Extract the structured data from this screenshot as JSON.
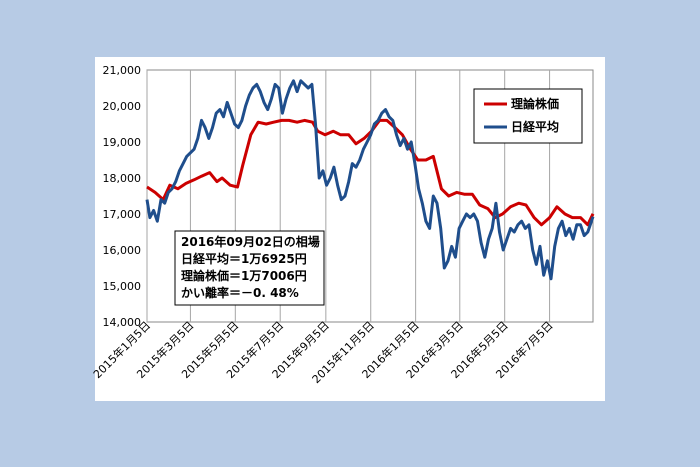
{
  "chart_data": {
    "type": "line",
    "x_tick_labels": [
      "2015年1月5日",
      "2015年3月5日",
      "2015年5月5日",
      "2015年7月5日",
      "2015年9月5日",
      "2015年11月5日",
      "2016年1月5日",
      "2016年3月5日",
      "2016年5月5日",
      "2016年7月5日"
    ],
    "y_tick_labels": [
      "14,000",
      "15,000",
      "16,000",
      "17,000",
      "18,000",
      "19,000",
      "20,000",
      "21,000"
    ],
    "ylim": [
      14000,
      21000
    ],
    "xlim": [
      "2015-01-05",
      "2016-09-02"
    ],
    "grid": "vertical",
    "legend_position": "top-right",
    "series": [
      {
        "name": "理論株価",
        "color": "#cc0000",
        "points": [
          [
            "2015-01-05",
            17750
          ],
          [
            "2015-01-16",
            17600
          ],
          [
            "2015-01-27",
            17400
          ],
          [
            "2015-02-05",
            17800
          ],
          [
            "2015-02-16",
            17700
          ],
          [
            "2015-02-27",
            17850
          ],
          [
            "2015-03-10",
            17950
          ],
          [
            "2015-03-20",
            18050
          ],
          [
            "2015-03-31",
            18150
          ],
          [
            "2015-04-10",
            17900
          ],
          [
            "2015-04-17",
            18000
          ],
          [
            "2015-04-28",
            17800
          ],
          [
            "2015-05-08",
            17750
          ],
          [
            "2015-05-15",
            18350
          ],
          [
            "2015-05-26",
            19200
          ],
          [
            "2015-06-05",
            19550
          ],
          [
            "2015-06-16",
            19500
          ],
          [
            "2015-06-26",
            19550
          ],
          [
            "2015-07-07",
            19600
          ],
          [
            "2015-07-17",
            19600
          ],
          [
            "2015-07-28",
            19550
          ],
          [
            "2015-08-07",
            19600
          ],
          [
            "2015-08-18",
            19550
          ],
          [
            "2015-08-25",
            19300
          ],
          [
            "2015-09-04",
            19200
          ],
          [
            "2015-09-15",
            19300
          ],
          [
            "2015-09-25",
            19200
          ],
          [
            "2015-10-06",
            19200
          ],
          [
            "2015-10-16",
            18950
          ],
          [
            "2015-10-27",
            19100
          ],
          [
            "2015-11-06",
            19300
          ],
          [
            "2015-11-17",
            19600
          ],
          [
            "2015-11-27",
            19600
          ],
          [
            "2015-12-08",
            19400
          ],
          [
            "2015-12-18",
            19200
          ],
          [
            "2015-12-29",
            18800
          ],
          [
            "2016-01-08",
            18500
          ],
          [
            "2016-01-19",
            18500
          ],
          [
            "2016-01-29",
            18600
          ],
          [
            "2016-02-09",
            17700
          ],
          [
            "2016-02-19",
            17500
          ],
          [
            "2016-03-01",
            17600
          ],
          [
            "2016-03-11",
            17550
          ],
          [
            "2016-03-22",
            17550
          ],
          [
            "2016-04-01",
            17250
          ],
          [
            "2016-04-12",
            17150
          ],
          [
            "2016-04-22",
            16900
          ],
          [
            "2016-05-02",
            17000
          ],
          [
            "2016-05-13",
            17200
          ],
          [
            "2016-05-24",
            17300
          ],
          [
            "2016-06-03",
            17250
          ],
          [
            "2016-06-14",
            16900
          ],
          [
            "2016-06-24",
            16700
          ],
          [
            "2016-07-05",
            16900
          ],
          [
            "2016-07-15",
            17200
          ],
          [
            "2016-07-26",
            17000
          ],
          [
            "2016-08-05",
            16900
          ],
          [
            "2016-08-16",
            16900
          ],
          [
            "2016-08-26",
            16700
          ],
          [
            "2016-09-02",
            17006
          ]
        ]
      },
      {
        "name": "日経平均",
        "color": "#1f4e8c",
        "points": [
          [
            "2015-01-05",
            17400
          ],
          [
            "2015-01-09",
            16900
          ],
          [
            "2015-01-14",
            17100
          ],
          [
            "2015-01-19",
            16800
          ],
          [
            "2015-01-24",
            17400
          ],
          [
            "2015-01-29",
            17300
          ],
          [
            "2015-02-03",
            17600
          ],
          [
            "2015-02-08",
            17700
          ],
          [
            "2015-02-13",
            17900
          ],
          [
            "2015-02-18",
            18200
          ],
          [
            "2015-02-23",
            18400
          ],
          [
            "2015-02-28",
            18600
          ],
          [
            "2015-03-05",
            18700
          ],
          [
            "2015-03-10",
            18800
          ],
          [
            "2015-03-15",
            19100
          ],
          [
            "2015-03-20",
            19600
          ],
          [
            "2015-03-25",
            19400
          ],
          [
            "2015-03-30",
            19100
          ],
          [
            "2015-04-04",
            19400
          ],
          [
            "2015-04-09",
            19800
          ],
          [
            "2015-04-14",
            19900
          ],
          [
            "2015-04-19",
            19700
          ],
          [
            "2015-04-24",
            20100
          ],
          [
            "2015-04-29",
            19800
          ],
          [
            "2015-05-04",
            19500
          ],
          [
            "2015-05-09",
            19400
          ],
          [
            "2015-05-14",
            19600
          ],
          [
            "2015-05-19",
            20000
          ],
          [
            "2015-05-24",
            20300
          ],
          [
            "2015-05-29",
            20500
          ],
          [
            "2015-06-03",
            20600
          ],
          [
            "2015-06-08",
            20400
          ],
          [
            "2015-06-13",
            20100
          ],
          [
            "2015-06-18",
            19900
          ],
          [
            "2015-06-23",
            20200
          ],
          [
            "2015-06-28",
            20600
          ],
          [
            "2015-07-03",
            20500
          ],
          [
            "2015-07-08",
            19800
          ],
          [
            "2015-07-13",
            20200
          ],
          [
            "2015-07-18",
            20500
          ],
          [
            "2015-07-23",
            20700
          ],
          [
            "2015-07-28",
            20400
          ],
          [
            "2015-08-02",
            20700
          ],
          [
            "2015-08-07",
            20600
          ],
          [
            "2015-08-12",
            20500
          ],
          [
            "2015-08-17",
            20600
          ],
          [
            "2015-08-22",
            19500
          ],
          [
            "2015-08-27",
            18000
          ],
          [
            "2015-09-01",
            18200
          ],
          [
            "2015-09-06",
            17800
          ],
          [
            "2015-09-11",
            18000
          ],
          [
            "2015-09-16",
            18300
          ],
          [
            "2015-09-21",
            17800
          ],
          [
            "2015-09-26",
            17400
          ],
          [
            "2015-10-01",
            17500
          ],
          [
            "2015-10-06",
            17900
          ],
          [
            "2015-10-11",
            18400
          ],
          [
            "2015-10-16",
            18300
          ],
          [
            "2015-10-21",
            18500
          ],
          [
            "2015-10-26",
            18800
          ],
          [
            "2015-10-31",
            19000
          ],
          [
            "2015-11-05",
            19200
          ],
          [
            "2015-11-10",
            19500
          ],
          [
            "2015-11-15",
            19600
          ],
          [
            "2015-11-20",
            19800
          ],
          [
            "2015-11-25",
            19900
          ],
          [
            "2015-11-30",
            19700
          ],
          [
            "2015-12-05",
            19600
          ],
          [
            "2015-12-10",
            19200
          ],
          [
            "2015-12-15",
            18900
          ],
          [
            "2015-12-20",
            19100
          ],
          [
            "2015-12-25",
            18800
          ],
          [
            "2015-12-30",
            19000
          ],
          [
            "2016-01-04",
            18400
          ],
          [
            "2016-01-09",
            17700
          ],
          [
            "2016-01-14",
            17300
          ],
          [
            "2016-01-19",
            16800
          ],
          [
            "2016-01-24",
            16600
          ],
          [
            "2016-01-29",
            17500
          ],
          [
            "2016-02-03",
            17300
          ],
          [
            "2016-02-08",
            16600
          ],
          [
            "2016-02-13",
            15500
          ],
          [
            "2016-02-18",
            15700
          ],
          [
            "2016-02-23",
            16100
          ],
          [
            "2016-02-28",
            15800
          ],
          [
            "2016-03-04",
            16600
          ],
          [
            "2016-03-09",
            16800
          ],
          [
            "2016-03-14",
            17000
          ],
          [
            "2016-03-19",
            16900
          ],
          [
            "2016-03-24",
            17000
          ],
          [
            "2016-03-29",
            16800
          ],
          [
            "2016-04-03",
            16200
          ],
          [
            "2016-04-08",
            15800
          ],
          [
            "2016-04-13",
            16300
          ],
          [
            "2016-04-18",
            16600
          ],
          [
            "2016-04-23",
            17300
          ],
          [
            "2016-04-28",
            16500
          ],
          [
            "2016-05-03",
            16000
          ],
          [
            "2016-05-08",
            16300
          ],
          [
            "2016-05-13",
            16600
          ],
          [
            "2016-05-18",
            16500
          ],
          [
            "2016-05-23",
            16700
          ],
          [
            "2016-05-28",
            16800
          ],
          [
            "2016-06-02",
            16600
          ],
          [
            "2016-06-07",
            16700
          ],
          [
            "2016-06-12",
            16000
          ],
          [
            "2016-06-17",
            15600
          ],
          [
            "2016-06-22",
            16100
          ],
          [
            "2016-06-27",
            15300
          ],
          [
            "2016-07-02",
            15700
          ],
          [
            "2016-07-07",
            15200
          ],
          [
            "2016-07-12",
            16100
          ],
          [
            "2016-07-17",
            16600
          ],
          [
            "2016-07-22",
            16800
          ],
          [
            "2016-07-27",
            16400
          ],
          [
            "2016-08-01",
            16600
          ],
          [
            "2016-08-06",
            16300
          ],
          [
            "2016-08-11",
            16700
          ],
          [
            "2016-08-16",
            16700
          ],
          [
            "2016-08-21",
            16400
          ],
          [
            "2016-08-26",
            16500
          ],
          [
            "2016-09-02",
            16925
          ]
        ]
      }
    ],
    "annotation": [
      "2016年09月02日の相場",
      "日経平均＝1万6925円",
      "理論株価＝1万7006円",
      "かい離率＝－0. 48%"
    ]
  }
}
